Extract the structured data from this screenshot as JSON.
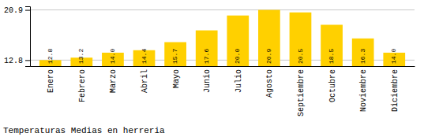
{
  "chart_data": {
    "type": "bar",
    "title": "Temperaturas Medias en herreria",
    "categories": [
      "Enero",
      "Febrero",
      "Marzo",
      "Abril",
      "Mayo",
      "Junio",
      "Julio",
      "Agosto",
      "Septiembre",
      "Octubre",
      "Noviembre",
      "Diciembre"
    ],
    "values": [
      12.8,
      13.2,
      14.0,
      14.4,
      15.7,
      17.6,
      20.0,
      20.9,
      20.5,
      18.5,
      16.3,
      14.0
    ],
    "value_labels": [
      "12.8",
      "13.2",
      "14.0",
      "14.4",
      "15.7",
      "17.6",
      "20.0",
      "20.9",
      "20.5",
      "18.5",
      "16.3",
      "14.0"
    ],
    "color": "#FFD000",
    "ylim": [
      11.828,
      21.4832
    ],
    "yticks": [
      12.8,
      20.9
    ],
    "grid": true,
    "data_labels": true
  }
}
